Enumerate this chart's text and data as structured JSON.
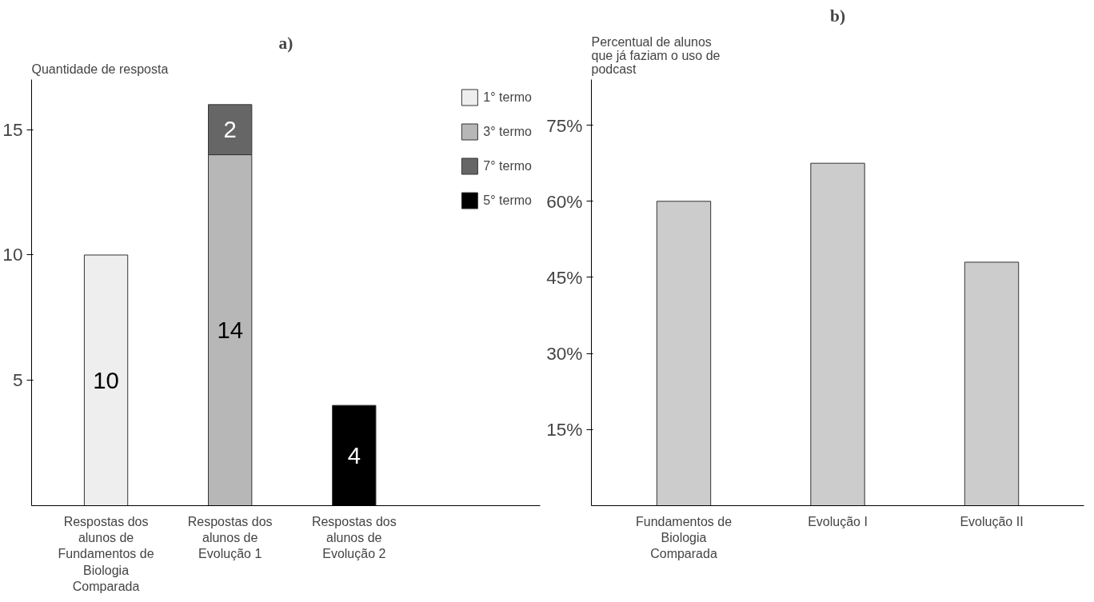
{
  "chart_data": [
    {
      "type": "bar",
      "title": "a)",
      "ylabel": "Quantidade de resposta",
      "stacked": true,
      "data_labels": true,
      "legend": "top right",
      "grid": false,
      "categories": [
        "Respostas dos alunos de Fundamentos de Biologia Comparada",
        "Respostas dos alunos de Evolução 1",
        "Respostas dos alunos de Evolução 2"
      ],
      "series": [
        {
          "name": "1° termo",
          "color": "#eeeeee",
          "values": [
            10,
            null,
            null
          ]
        },
        {
          "name": "3° termo",
          "color": "#b7b7b7",
          "values": [
            null,
            14,
            null
          ]
        },
        {
          "name": "7° termo",
          "color": "#666666",
          "values": [
            null,
            2,
            null
          ]
        },
        {
          "name": "5° termo",
          "color": "#000000",
          "values": [
            null,
            null,
            4
          ]
        }
      ],
      "ylim": [
        0,
        17
      ],
      "yticks": [
        5,
        10,
        15
      ]
    },
    {
      "type": "bar",
      "title": "b)",
      "ylabel": "Percentual de alunos que já faziam o uso de podcast",
      "grid": false,
      "categories": [
        "Fundamentos de Biologia Comparada",
        "Evolução I",
        "Evolução II"
      ],
      "series": [
        {
          "color": "#cccccc",
          "values": [
            60,
            67.5,
            48
          ]
        }
      ],
      "ylim": [
        0,
        84
      ],
      "yticks": [
        {
          "value": 15,
          "label": "15%"
        },
        {
          "value": 30,
          "label": "30%"
        },
        {
          "value": 45,
          "label": "45%"
        },
        {
          "value": 60,
          "label": "60%"
        },
        {
          "value": 75,
          "label": "75%"
        }
      ]
    }
  ]
}
